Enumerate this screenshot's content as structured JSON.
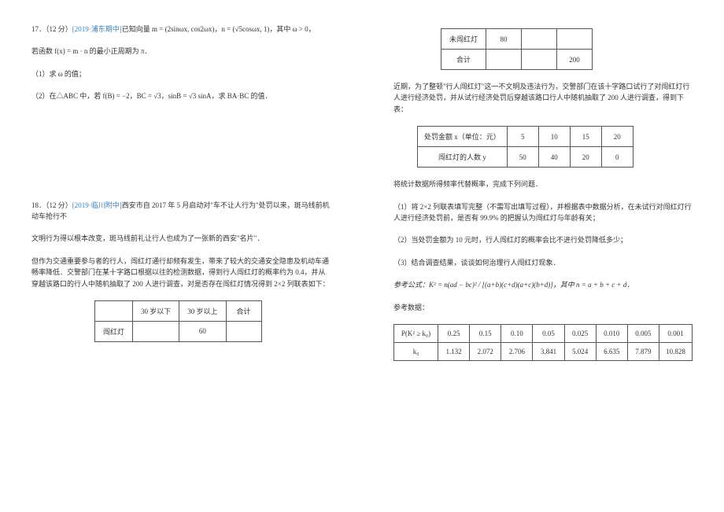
{
  "left": {
    "q17": {
      "header_a": "17．（12 分）",
      "src": "[2019·浦东期中]",
      "header_b": "已知向量 m = (2sinωx, cos2ωx)，n = (√5cosωx, 1)，其中 ω > 0，",
      "line2": "若函数 f(x) = m · n 的最小正周期为 π．",
      "part1": "（1）求 ω 的值；",
      "part2": "（2）在△ABC 中，若 f(B) = −2，BC = √3，sinB = √3 sinA，求 BA·BC 的值．"
    },
    "q18": {
      "header_a": "18．（12 分）",
      "src": "[2019·临川附中]",
      "header_b": "西安市自 2017 年 5 月启动对\"车不让人行为\"处罚以来，斑马线前机动车抢行不",
      "line2": "文明行为得以根本改变，斑马线前礼让行人也成为了一张新的西安\"名片\"．",
      "para2": "但作为交通重要参与者的行人，闯红灯通行却频有发生，带来了较大的交通安全隐患及机动车通畅率降低．交警部门在某十字路口根据以往的检测数据，得到行人闯红灯的概率约为 0.4，并从穿越该路口的行人中随机抽取了 200 人进行调查，对是否存在闯红灯情况得到 2×2 列联表如下：",
      "t1": {
        "h1": "",
        "h2": "30 岁以下",
        "h3": "30 岁以上",
        "h4": "合计",
        "r1c1": "闯红灯",
        "r1c2": "",
        "r1c3": "60",
        "r1c4": ""
      }
    }
  },
  "right": {
    "t2": {
      "r1c1": "未闯红灯",
      "r1c2": "80",
      "r1c3": "",
      "r1c4": "",
      "r2c1": "合计",
      "r2c2": "",
      "r2c3": "",
      "r2c4": "200"
    },
    "para1": "近期，为了整顿\"行人闯红灯\"这一不文明及违法行为，交警部门在该十字路口试行了对闯红灯行人进行经济处罚，并从试行经济处罚后穿越该路口行人中随机抽取了 200 人进行调查，得到下表：",
    "t3": {
      "h1": "处罚金额 x（单位：元）",
      "h2": "5",
      "h3": "10",
      "h4": "15",
      "h5": "20",
      "r1c1": "闯红灯的人数 y",
      "r1c2": "50",
      "r1c3": "40",
      "r1c4": "20",
      "r1c5": "0"
    },
    "para2": "将统计数据所得频率代替概率，完成下列问题．",
    "part1": "（1）将 2×2 列联表填写完整（不需写出填写过程），并根据表中数据分析，在未试行对闯红灯行人进行经济处罚前，是否有 99.9% 的把握认为闯红灯与年龄有关；",
    "part2": "（2）当处罚金额为 10 元时，行人闯红灯的概率会比不进行处罚降低多少；",
    "part3": "（3）结合调查结果，谈谈如何治理行人闯红灯现象．",
    "formula": "参考公式：K² = n(ad − bc)² / [(a+b)(c+d)(a+c)(b+d)]，其中 n = a + b + c + d．",
    "para3": "参考数据：",
    "t4": {
      "h1": "P(K² ≥ k₀)",
      "h2": "0.25",
      "h3": "0.15",
      "h4": "0.10",
      "h5": "0.05",
      "h6": "0.025",
      "h7": "0.010",
      "h8": "0.005",
      "h9": "0.001",
      "r1c1": "k₀",
      "r1c2": "1.132",
      "r1c3": "2.072",
      "r1c4": "2.706",
      "r1c5": "3.841",
      "r1c6": "5.024",
      "r1c7": "6.635",
      "r1c8": "7.879",
      "r1c9": "10.828"
    }
  }
}
